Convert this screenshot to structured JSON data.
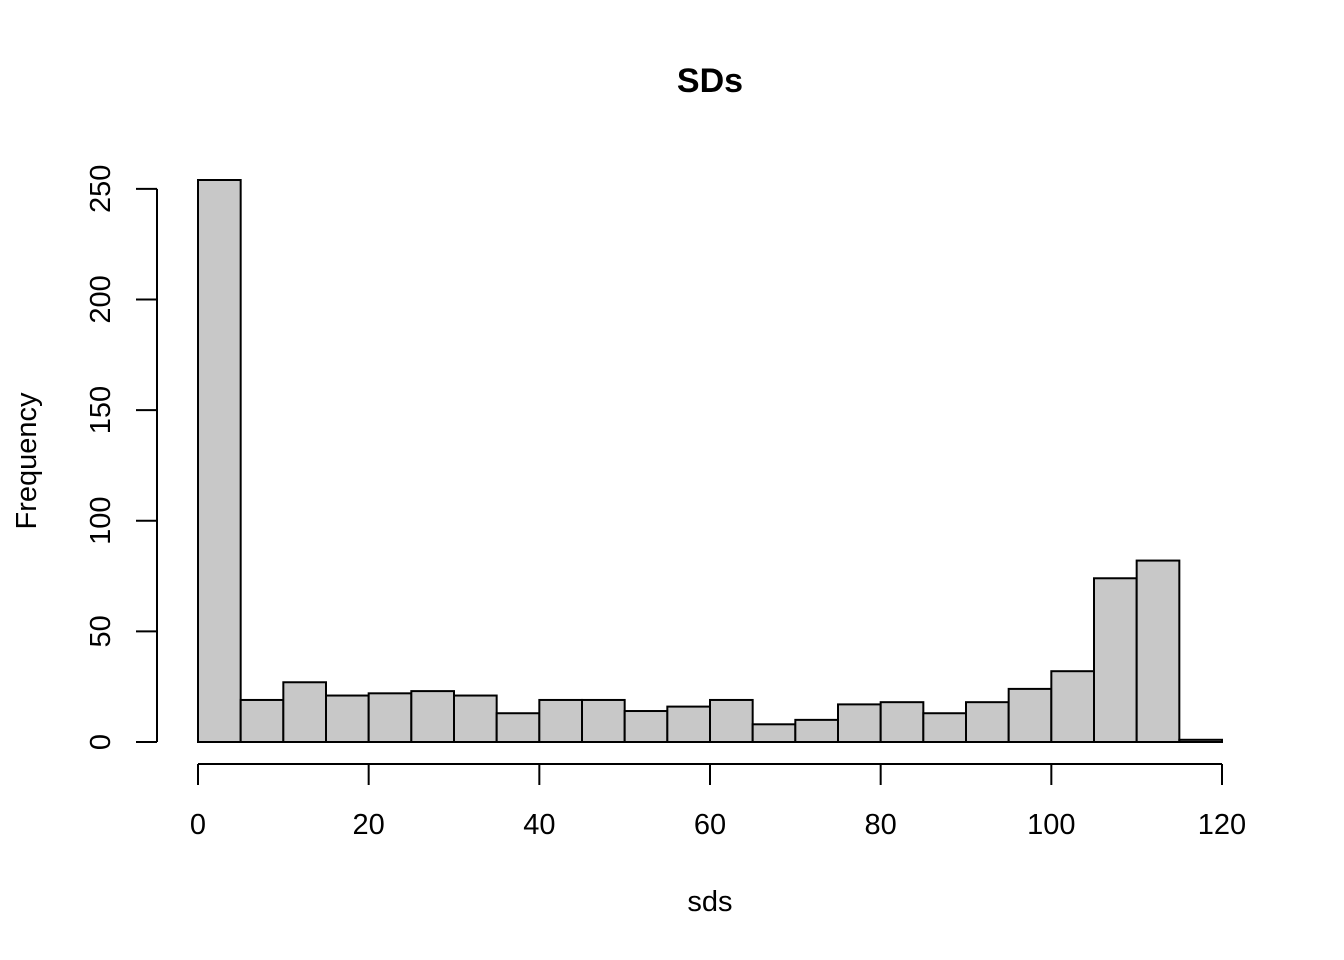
{
  "chart_data": {
    "type": "bar",
    "subtype": "histogram",
    "title": "SDs",
    "xlabel": "sds",
    "ylabel": "Frequency",
    "bin_width": 5,
    "bin_edges": [
      0,
      5,
      10,
      15,
      20,
      25,
      30,
      35,
      40,
      45,
      50,
      55,
      60,
      65,
      70,
      75,
      80,
      85,
      90,
      95,
      100,
      105,
      110,
      115,
      120
    ],
    "values": [
      254,
      19,
      27,
      21,
      22,
      23,
      21,
      13,
      19,
      19,
      14,
      16,
      19,
      8,
      10,
      17,
      18,
      13,
      18,
      24,
      32,
      74,
      82,
      1
    ],
    "xlim": [
      0,
      120
    ],
    "ylim": [
      0,
      254
    ],
    "x_ticks": [
      0,
      20,
      40,
      60,
      80,
      100,
      120
    ],
    "y_ticks": [
      0,
      50,
      100,
      150,
      200,
      250
    ],
    "bar_color": "#c8c8c8",
    "edge_color": "#000000",
    "grid": false,
    "legend": "none"
  }
}
